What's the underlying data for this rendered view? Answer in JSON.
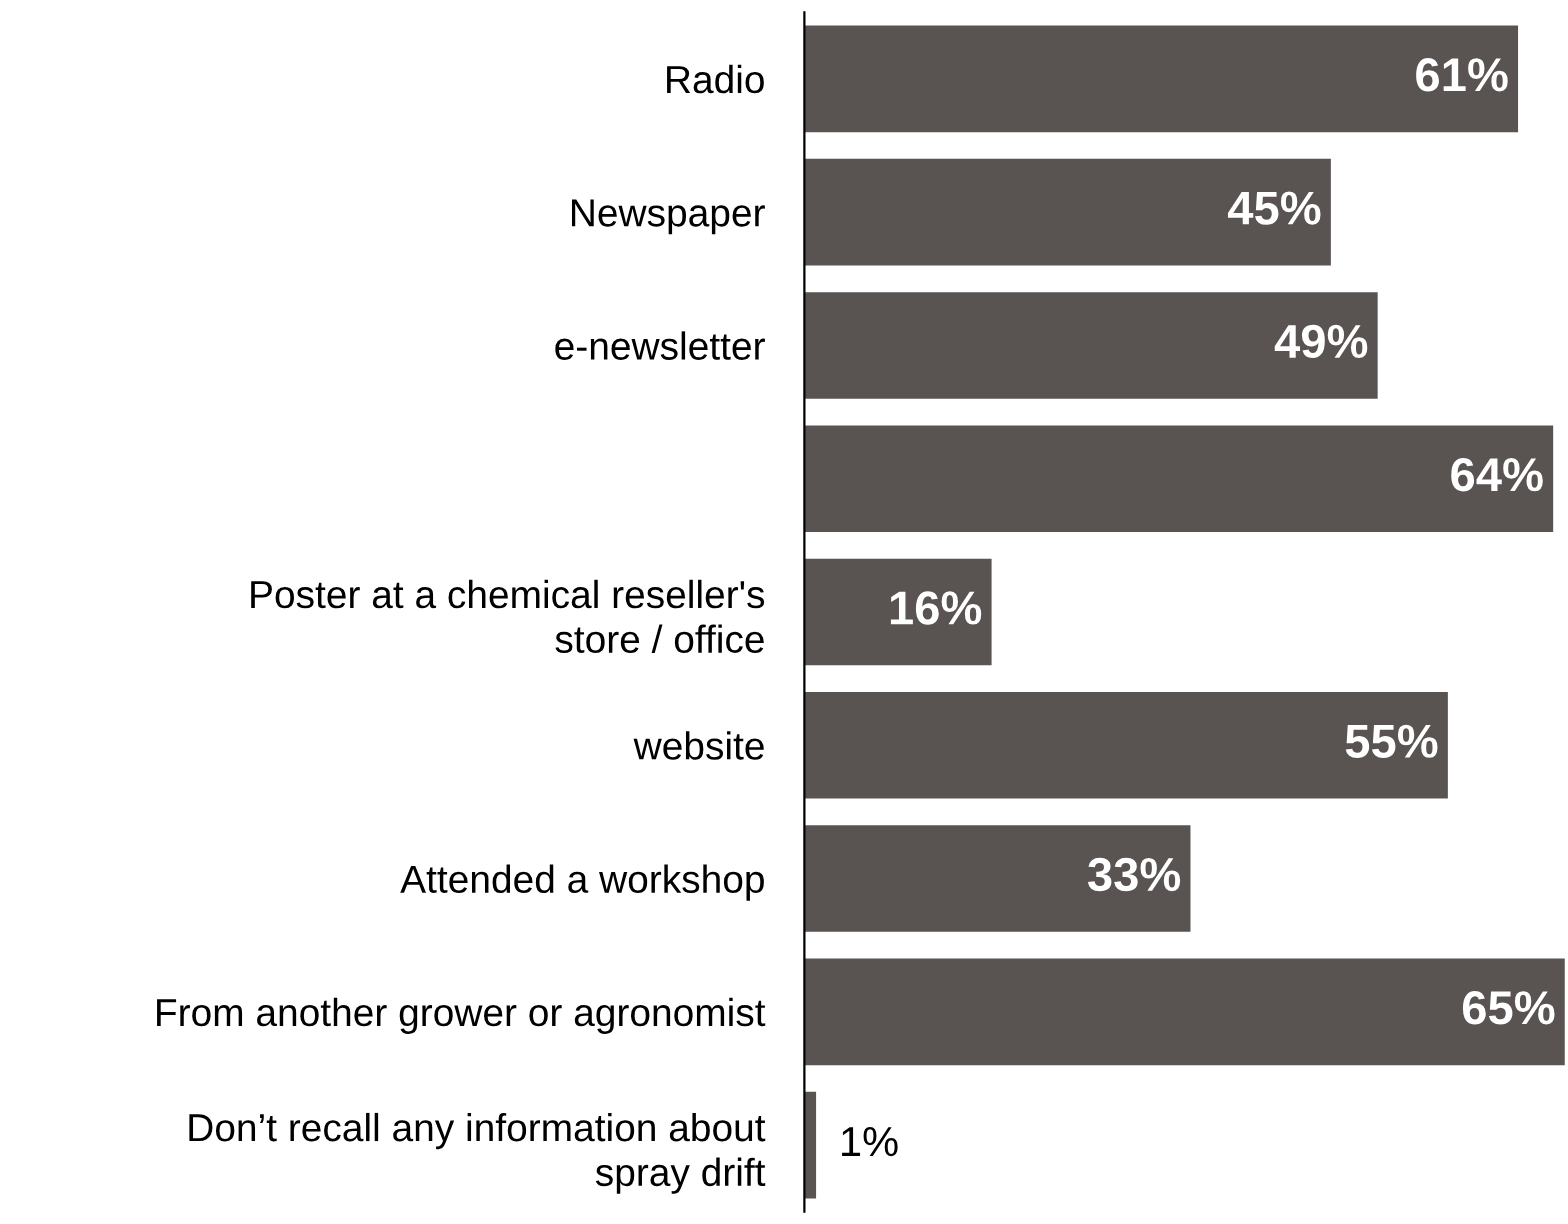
{
  "chart_data": {
    "type": "bar",
    "orientation": "horizontal",
    "categories": [
      "Radio",
      "Newspaper",
      "e-newsletter",
      null,
      "Poster at a chemical reseller's\nstore / office",
      "website",
      "Attended a workshop",
      "From another grower or agronomist",
      "Don’t recall any information about\nspray drift"
    ],
    "values": [
      61,
      45,
      49,
      64,
      16,
      55,
      33,
      65,
      1
    ],
    "value_labels": [
      "61%",
      "45%",
      "49%",
      "64%",
      "16%",
      "55%",
      "33%",
      "65%",
      "1%"
    ],
    "color": "#595352",
    "xlim": [
      0,
      65
    ],
    "tick_labels": "y",
    "grid": false,
    "legend": false
  }
}
